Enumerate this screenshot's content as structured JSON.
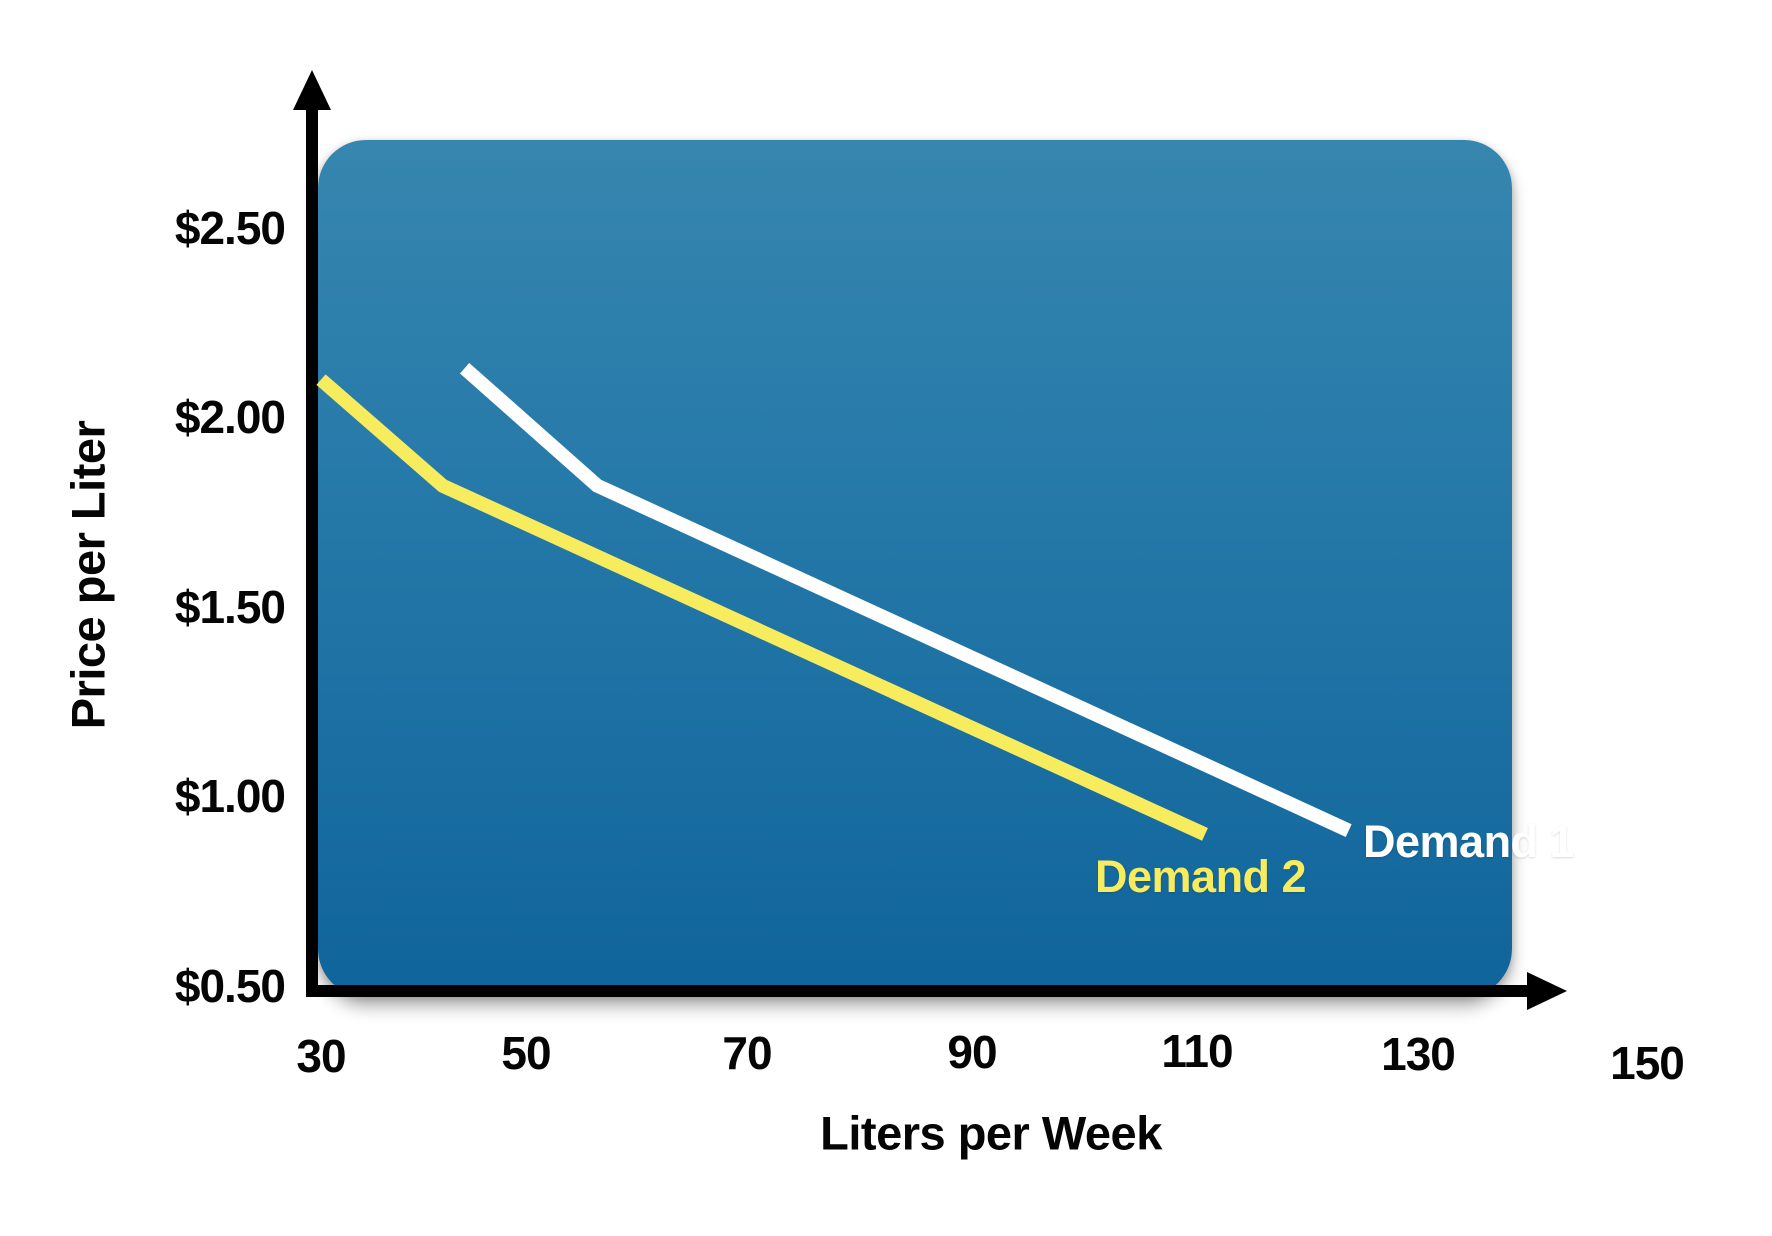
{
  "page": {
    "background": "#ffffff"
  },
  "chart_data": {
    "type": "line",
    "title": "",
    "xlabel": "Liters per Week",
    "ylabel": "Price per Liter",
    "xlim": [
      30,
      150
    ],
    "ylim": [
      0.5,
      2.5
    ],
    "xticklabels": [
      "30",
      "50",
      "70",
      "90",
      "110",
      "130",
      "150"
    ],
    "yticklabels": [
      "$2.50",
      "$2.00",
      "$1.50",
      "$1.00",
      "$0.50"
    ],
    "xtick_values": [
      30,
      50,
      70,
      90,
      110,
      130,
      150
    ],
    "ytick_values": [
      2.5,
      2.0,
      1.5,
      1.0,
      0.5
    ],
    "grid": false,
    "legend": "inline-labels",
    "plot_bg_top": "#3686af",
    "plot_bg_bottom": "#0f649b",
    "axis_color": "#000000",
    "series": [
      {
        "name": "Demand 1",
        "color": "#ffffff",
        "points": [
          [
            43,
            2.13
          ],
          [
            55,
            1.82
          ],
          [
            123,
            0.91
          ]
        ]
      },
      {
        "name": "Demand 2",
        "color": "#f6ec5d",
        "points": [
          [
            30,
            2.1
          ],
          [
            41,
            1.82
          ],
          [
            110,
            0.9
          ]
        ]
      }
    ]
  }
}
